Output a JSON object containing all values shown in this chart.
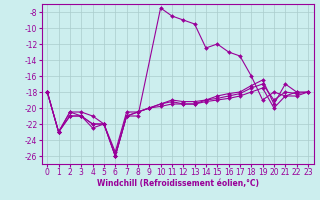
{
  "xlabel": "Windchill (Refroidissement éolien,°C)",
  "line_color": "#990099",
  "bg_color": "#cceeee",
  "grid_color": "#aacccc",
  "ylim": [
    -27,
    -7
  ],
  "yticks": [
    -26,
    -24,
    -22,
    -20,
    -18,
    -16,
    -14,
    -12,
    -10,
    -8
  ],
  "xticks": [
    0,
    1,
    2,
    3,
    4,
    5,
    6,
    7,
    8,
    9,
    10,
    11,
    12,
    13,
    14,
    15,
    16,
    17,
    18,
    19,
    20,
    21,
    22,
    23
  ],
  "line1_x": [
    0,
    1,
    2,
    3,
    4,
    5,
    6,
    7,
    8,
    10,
    11,
    12,
    13,
    14,
    15,
    16,
    17,
    18,
    19,
    20,
    21,
    22
  ],
  "line1_y": [
    -18,
    -23,
    -20.5,
    -20.5,
    -21,
    -22,
    -26,
    -21,
    -21,
    -7.5,
    -8.5,
    -9.0,
    -9.5,
    -12.5,
    -12,
    -13,
    -13.5,
    -16,
    -19,
    -18,
    -18.5,
    -18
  ],
  "line2_x": [
    0,
    1,
    2,
    3,
    4,
    5,
    6,
    7,
    8,
    9,
    10,
    11,
    12,
    13,
    14,
    15,
    16,
    17,
    18,
    19,
    20,
    21,
    22,
    23
  ],
  "line2_y": [
    -18,
    -23,
    -20.5,
    -21,
    -22,
    -22,
    -25.5,
    -20.5,
    -20.5,
    -20,
    -19.5,
    -19.2,
    -19.5,
    -19.5,
    -19,
    -18.8,
    -18.5,
    -18.2,
    -17.5,
    -17,
    -19,
    -18,
    -18.2,
    -18
  ],
  "line3_x": [
    0,
    1,
    2,
    3,
    4,
    5,
    6,
    7,
    8,
    9,
    10,
    11,
    12,
    13,
    14,
    15,
    16,
    17,
    18,
    19,
    20,
    21,
    22,
    23
  ],
  "line3_y": [
    -18,
    -23,
    -21,
    -21,
    -22,
    -22,
    -26,
    -21,
    -20.5,
    -20,
    -19.5,
    -19,
    -19.2,
    -19.2,
    -19,
    -18.5,
    -18.2,
    -18,
    -17.2,
    -16.5,
    -19.5,
    -17,
    -18,
    -18
  ],
  "line4_x": [
    0,
    1,
    2,
    3,
    4,
    5,
    6,
    7,
    8,
    9,
    10,
    11,
    12,
    13,
    14,
    15,
    16,
    17,
    18,
    19,
    20,
    21,
    22,
    23
  ],
  "line4_y": [
    -18,
    -23,
    -21,
    -21,
    -22.5,
    -22,
    -26,
    -21,
    -20.5,
    -20,
    -19.8,
    -19.5,
    -19.5,
    -19.5,
    -19.2,
    -19,
    -18.8,
    -18.5,
    -18,
    -17.5,
    -20,
    -18.5,
    -18.5,
    -18
  ],
  "markersize": 2.0,
  "linewidth": 0.8,
  "tick_fontsize": 5.5,
  "xlabel_fontsize": 5.5
}
